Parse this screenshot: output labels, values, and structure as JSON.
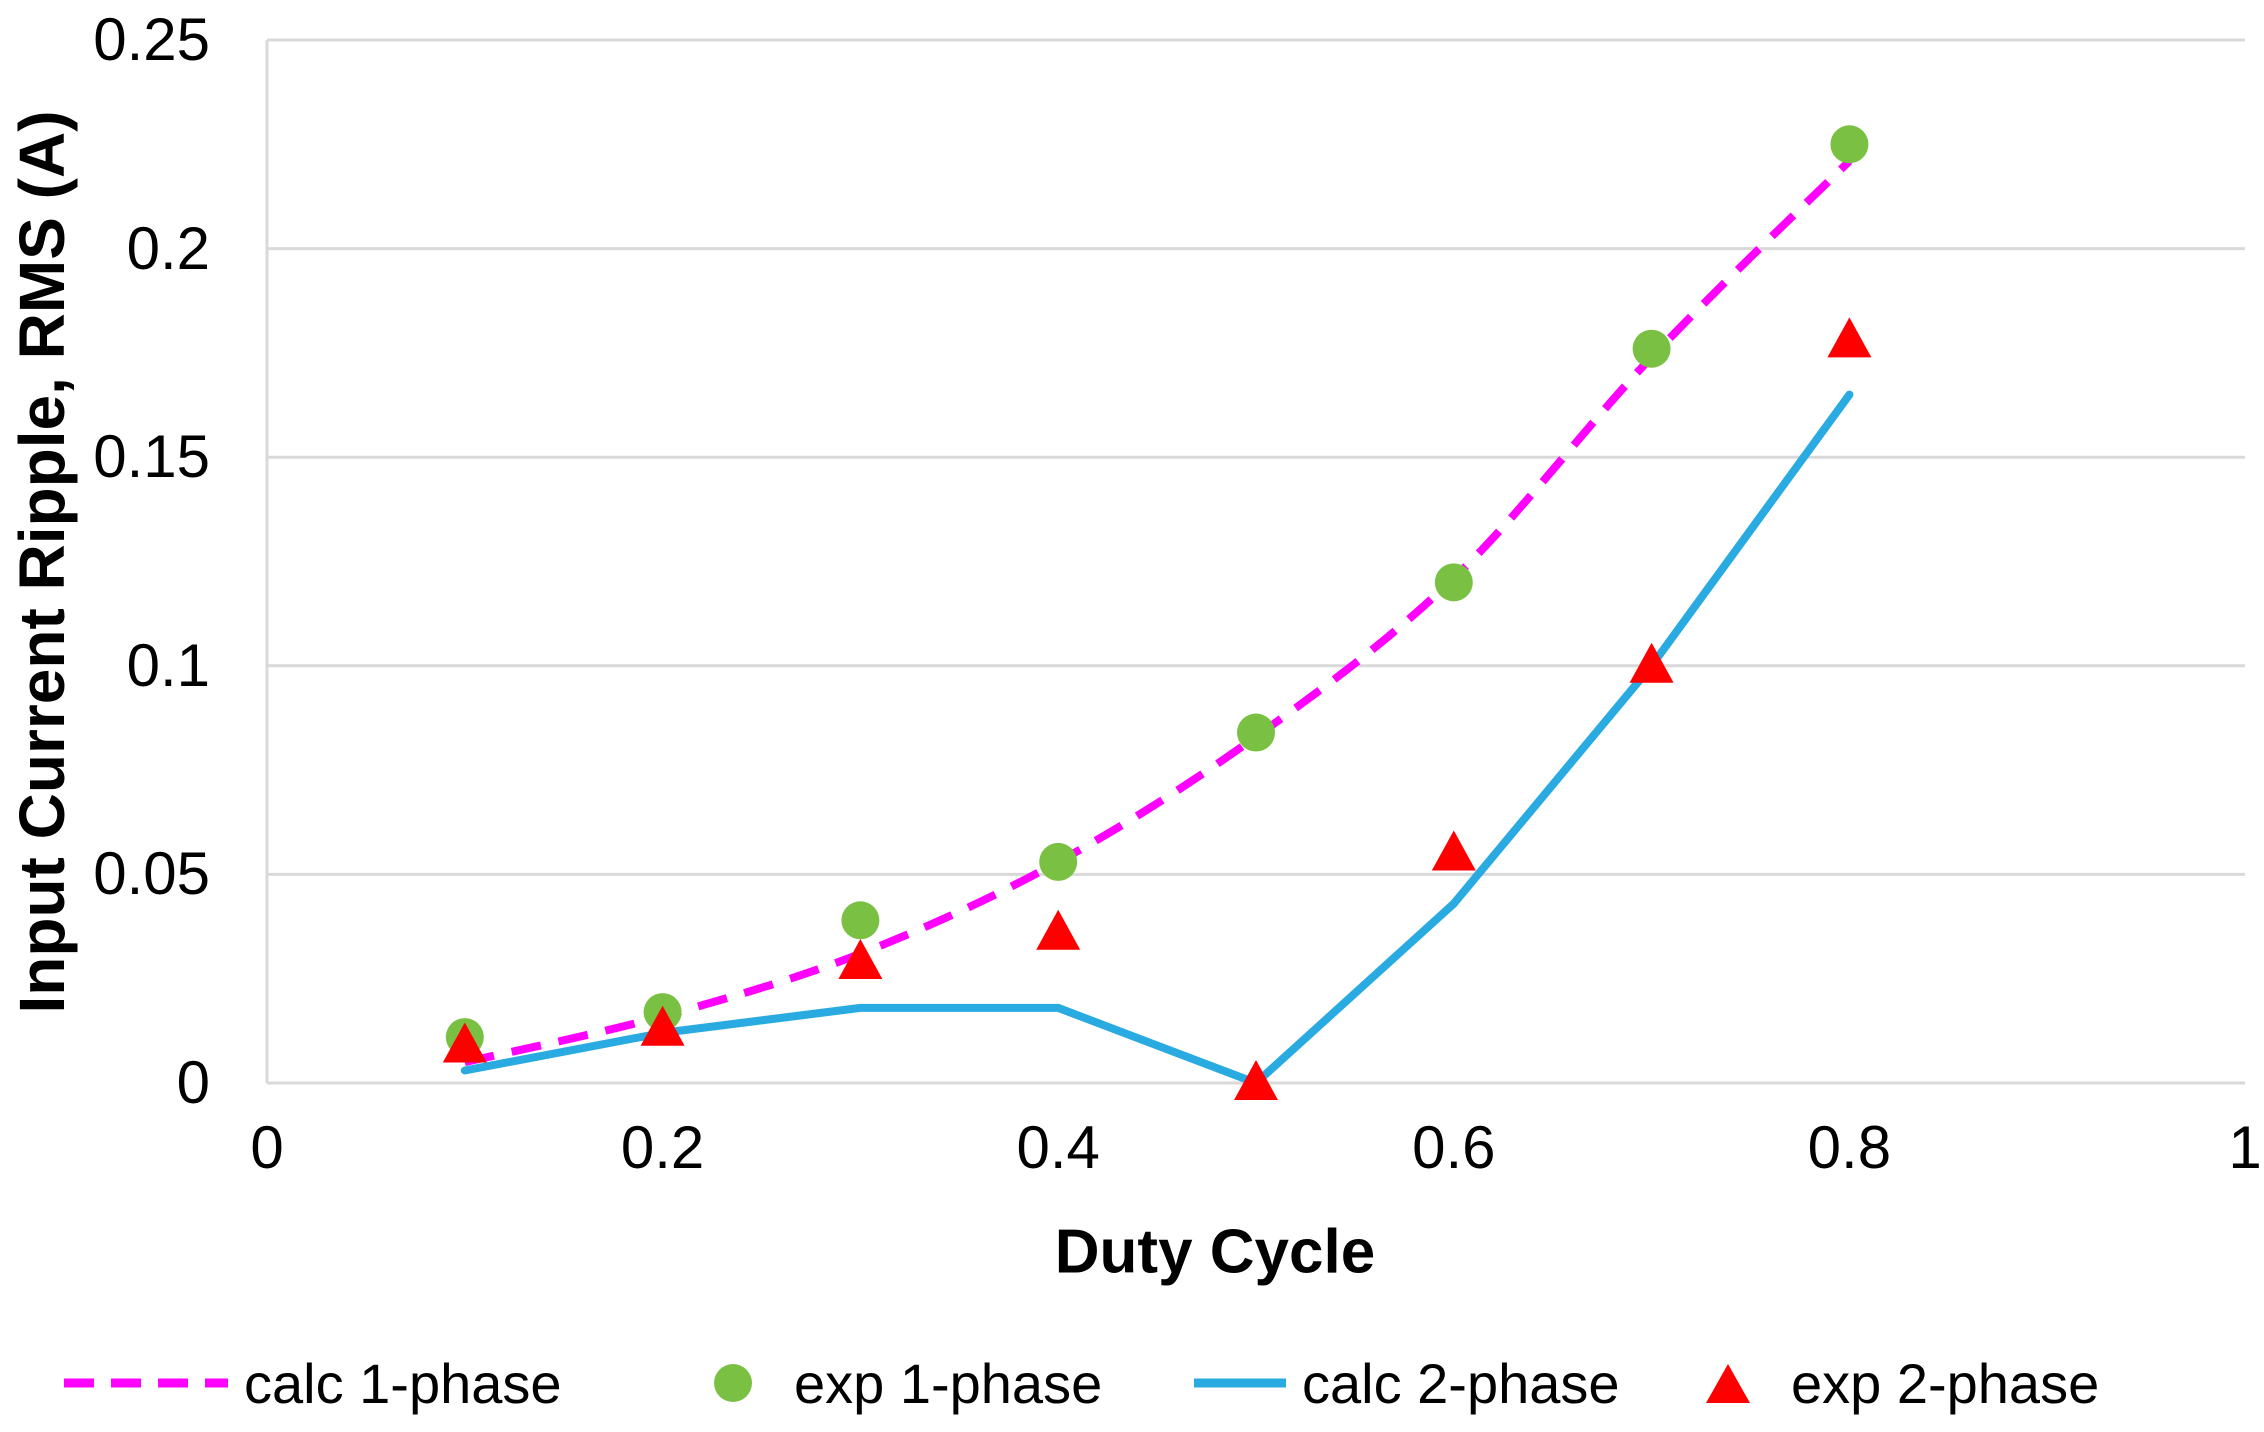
{
  "chart_data": {
    "type": "line",
    "title": "",
    "xlabel": "Duty Cycle",
    "ylabel": "Input Current Ripple, RMS (A)",
    "xlim": [
      0,
      1
    ],
    "ylim": [
      0,
      0.25
    ],
    "x_ticks": [
      0,
      0.2,
      0.4,
      0.6,
      0.8,
      1
    ],
    "x_tick_labels": [
      "0",
      "0.2",
      "0.4",
      "0.6",
      "0.8",
      "1"
    ],
    "y_ticks": [
      0,
      0.05,
      0.1,
      0.15,
      0.2,
      0.25
    ],
    "y_tick_labels": [
      "0",
      "0.05",
      "0.1",
      "0.15",
      "0.2",
      "0.25"
    ],
    "grid": "horizontal",
    "legend_position": "bottom",
    "series": [
      {
        "name": "calc 1-phase",
        "type": "line",
        "style": "dashed",
        "smooth": true,
        "color": "#FF00FF",
        "x": [
          0.1,
          0.2,
          0.3,
          0.4,
          0.5,
          0.6,
          0.7,
          0.8
        ],
        "y": [
          0.005,
          0.016,
          0.031,
          0.053,
          0.083,
          0.121,
          0.174,
          0.221
        ]
      },
      {
        "name": "exp 1-phase",
        "type": "scatter",
        "marker": "circle",
        "color": "#7AC143",
        "x": [
          0.1,
          0.2,
          0.3,
          0.4,
          0.5,
          0.6,
          0.7,
          0.8
        ],
        "y": [
          0.011,
          0.017,
          0.039,
          0.053,
          0.084,
          0.12,
          0.176,
          0.225
        ]
      },
      {
        "name": "calc 2-phase",
        "type": "line",
        "style": "solid",
        "smooth": false,
        "color": "#29ABE2",
        "x": [
          0.1,
          0.2,
          0.3,
          0.4,
          0.5,
          0.6,
          0.7,
          0.8
        ],
        "y": [
          0.003,
          0.012,
          0.018,
          0.018,
          0.0,
          0.043,
          0.1,
          0.165
        ]
      },
      {
        "name": "exp 2-phase",
        "type": "scatter",
        "marker": "triangle",
        "color": "#FF0000",
        "x": [
          0.1,
          0.2,
          0.3,
          0.4,
          0.5,
          0.6,
          0.7,
          0.8
        ],
        "y": [
          0.009,
          0.013,
          0.029,
          0.036,
          0.0,
          0.055,
          0.1,
          0.178
        ]
      }
    ]
  },
  "colors": {
    "background": "#FFFFFF",
    "gridline": "#D9D9D9",
    "axis_line": "#D9D9D9",
    "text": "#000000"
  }
}
